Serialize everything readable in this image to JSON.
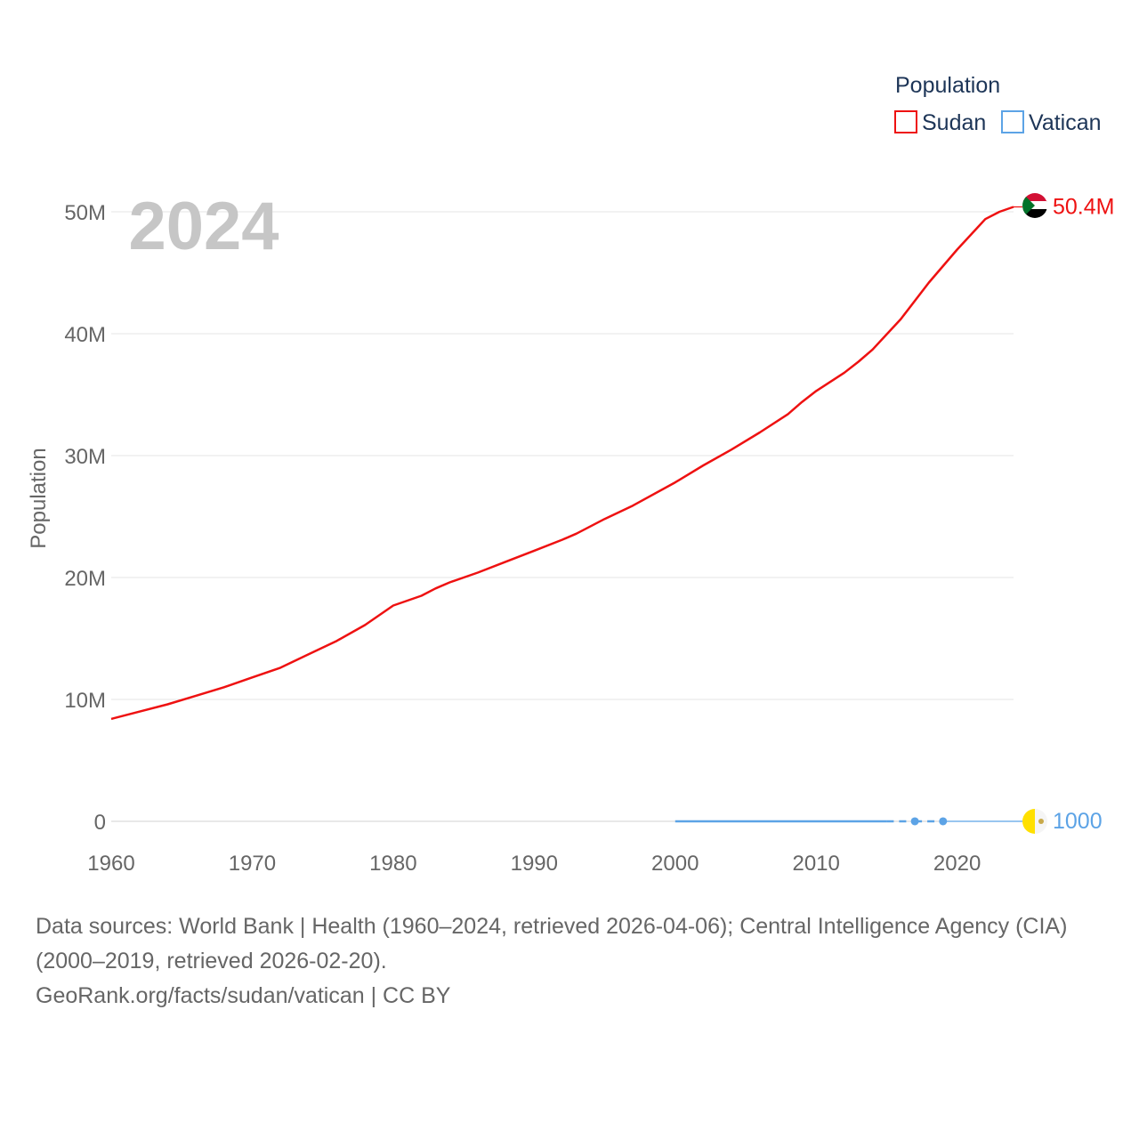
{
  "chart_data": {
    "type": "line",
    "big_year": "2024",
    "ylabel": "Population",
    "xlim": [
      1960,
      2024
    ],
    "ylim": [
      0,
      50000000
    ],
    "x_ticks": [
      "1960",
      "1970",
      "1980",
      "1990",
      "2000",
      "2010",
      "2020"
    ],
    "y_ticks": [
      "0",
      "10M",
      "20M",
      "30M",
      "40M",
      "50M"
    ],
    "legend": {
      "title": "Population",
      "placement": "top-right",
      "items": [
        "Sudan",
        "Vatican"
      ]
    },
    "series": [
      {
        "name": "Sudan",
        "color": "#ee1111",
        "end_label": "50.4M",
        "flag_icon": "sudan-flag-icon",
        "x": [
          1960,
          1962,
          1964,
          1966,
          1968,
          1970,
          1972,
          1974,
          1976,
          1978,
          1980,
          1982,
          1983,
          1984,
          1986,
          1988,
          1990,
          1992,
          1993,
          1995,
          1997,
          2000,
          2002,
          2004,
          2006,
          2008,
          2009,
          2010,
          2012,
          2013,
          2014,
          2016,
          2018,
          2020,
          2022,
          2023,
          2024
        ],
        "values": [
          8400000,
          9000000,
          9600000,
          10300000,
          11000000,
          11800000,
          12600000,
          13700000,
          14800000,
          16100000,
          17700000,
          18500000,
          19100000,
          19600000,
          20400000,
          21300000,
          22200000,
          23100000,
          23600000,
          24800000,
          25900000,
          27800000,
          29200000,
          30500000,
          31900000,
          33400000,
          34400000,
          35300000,
          36800000,
          37700000,
          38700000,
          41200000,
          44200000,
          46900000,
          49400000,
          50000000,
          50400000
        ]
      },
      {
        "name": "Vatican",
        "color": "#5ca3e6",
        "end_label": "1000",
        "flag_icon": "vatican-flag-icon",
        "x": [
          2000,
          2001,
          2002,
          2003,
          2004,
          2005,
          2006,
          2007,
          2008,
          2009,
          2010,
          2011,
          2012,
          2013,
          2014,
          2015,
          2017,
          2019
        ],
        "values": [
          900,
          900,
          900,
          900,
          900,
          900,
          900,
          900,
          900,
          900,
          900,
          900,
          900,
          900,
          900,
          900,
          1000,
          1000
        ]
      }
    ]
  },
  "footer": {
    "sources_line": "Data sources: World Bank | Health (1960–2024, retrieved 2026-04-06); Central Intelligence Agency (CIA) (2000–2019, retrieved 2026-02-20).",
    "attribution": "GeoRank.org/facts/sudan/vatican | CC BY"
  }
}
